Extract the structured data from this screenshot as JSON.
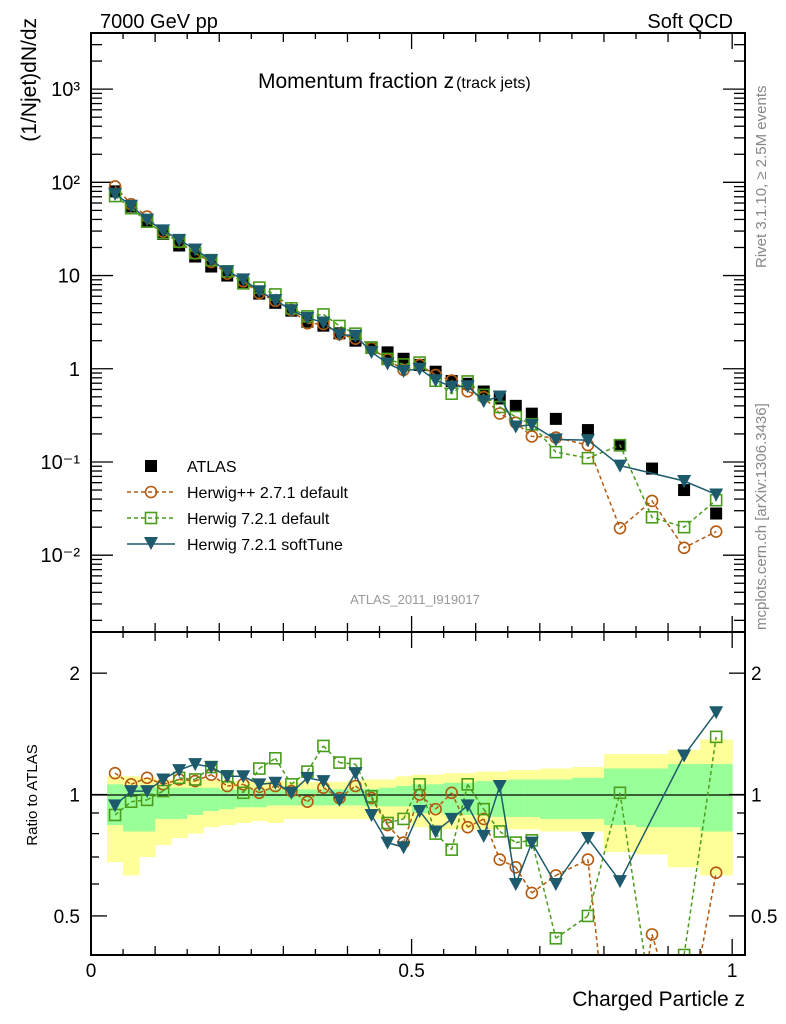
{
  "header": {
    "left": "7000 GeV pp",
    "right": "Soft QCD"
  },
  "side_text": {
    "rivet": "Rivet 3.1.10, ≥ 2.5M events",
    "mcplots": "mcplots.cern.ch [arXiv:1306.3436]"
  },
  "watermark": "ATLAS_2011_I919017",
  "chart_data": {
    "type": "line",
    "title": "Momentum fraction z",
    "title_sub": "(track jets)",
    "xlabel": "Charged Particle z",
    "ylabel": "(1/Njet)dN/dz",
    "ratio_ylabel": "Ratio to ATLAS",
    "xlim": [
      0,
      1.02
    ],
    "ylim": [
      0.0015,
      4000
    ],
    "yscale": "log",
    "ratio_ylim": [
      0.4,
      2.53
    ],
    "x_ticks": [
      {
        "v": 0,
        "label": "0"
      },
      {
        "v": 0.5,
        "label": "0.5"
      },
      {
        "v": 1,
        "label": "1"
      }
    ],
    "y_ticks": [
      {
        "v": 1000,
        "label": "10³"
      },
      {
        "v": 100,
        "label": "10²"
      },
      {
        "v": 10,
        "label": "10"
      },
      {
        "v": 1,
        "label": "1"
      },
      {
        "v": 0.1,
        "label": "10⁻¹"
      },
      {
        "v": 0.01,
        "label": "10⁻²"
      }
    ],
    "ratio_ticks": [
      {
        "v": 0.5,
        "label": "0.5"
      },
      {
        "v": 1,
        "label": "1"
      },
      {
        "v": 2,
        "label": "2"
      }
    ],
    "legend_position": "lower-left",
    "x": [
      0.0375,
      0.0625,
      0.0875,
      0.1125,
      0.1375,
      0.1625,
      0.1875,
      0.2125,
      0.2375,
      0.2625,
      0.2875,
      0.3125,
      0.3375,
      0.3625,
      0.3875,
      0.4125,
      0.4375,
      0.4625,
      0.4875,
      0.5125,
      0.5375,
      0.5625,
      0.5875,
      0.6125,
      0.6375,
      0.6625,
      0.6875,
      0.725,
      0.775,
      0.825,
      0.875,
      0.925,
      0.975
    ],
    "data": {
      "name": "ATLAS",
      "color": "#000000",
      "values": [
        80,
        55,
        39,
        28,
        21,
        16,
        12.5,
        10,
        8.2,
        6.4,
        5.1,
        4.2,
        3.2,
        2.9,
        2.4,
        2.0,
        1.7,
        1.5,
        1.28,
        1.1,
        0.93,
        0.74,
        0.69,
        0.57,
        0.48,
        0.4,
        0.33,
        0.29,
        0.22,
        0.15,
        0.085,
        0.05,
        0.028
      ],
      "band_total": {
        "lo": [
          0.68,
          0.63,
          0.7,
          0.75,
          0.78,
          0.8,
          0.83,
          0.84,
          0.85,
          0.86,
          0.85,
          0.87,
          0.87,
          0.87,
          0.87,
          0.87,
          0.87,
          0.87,
          0.87,
          0.83,
          0.82,
          0.82,
          0.82,
          0.82,
          0.82,
          0.82,
          0.82,
          0.81,
          0.81,
          0.72,
          0.71,
          0.66,
          0.63
        ],
        "hi": [
          1.11,
          1.11,
          1.1,
          1.09,
          1.09,
          1.09,
          1.09,
          1.08,
          1.08,
          1.08,
          1.08,
          1.075,
          1.075,
          1.075,
          1.075,
          1.085,
          1.09,
          1.09,
          1.11,
          1.12,
          1.12,
          1.13,
          1.13,
          1.14,
          1.14,
          1.15,
          1.15,
          1.16,
          1.17,
          1.26,
          1.26,
          1.29,
          1.37
        ]
      },
      "band_stat": {
        "lo": [
          0.84,
          0.81,
          0.81,
          0.87,
          0.87,
          0.89,
          0.91,
          0.92,
          0.93,
          0.93,
          0.94,
          0.94,
          0.94,
          0.94,
          0.94,
          0.94,
          0.935,
          0.935,
          0.935,
          0.9,
          0.9,
          0.89,
          0.89,
          0.89,
          0.88,
          0.88,
          0.88,
          0.87,
          0.87,
          0.84,
          0.83,
          0.83,
          0.81
        ],
        "hi": [
          1.06,
          1.05,
          1.05,
          1.04,
          1.04,
          1.04,
          1.04,
          1.03,
          1.03,
          1.03,
          1.03,
          1.03,
          1.03,
          1.03,
          1.03,
          1.033,
          1.033,
          1.04,
          1.05,
          1.06,
          1.06,
          1.07,
          1.07,
          1.08,
          1.08,
          1.09,
          1.09,
          1.09,
          1.1,
          1.16,
          1.16,
          1.19,
          1.19
        ]
      }
    },
    "series": [
      {
        "name": "Herwig++ 2.7.1 default",
        "color": "#b35a10",
        "marker": "circle",
        "dashed": true,
        "ratio_to_data": [
          1.13,
          1.06,
          1.1,
          1.06,
          1.09,
          1.08,
          1.12,
          1.05,
          1.06,
          1.01,
          1.05,
          1.02,
          0.96,
          1.04,
          0.98,
          1.05,
          0.98,
          0.84,
          0.76,
          1.0,
          0.92,
          1.01,
          0.83,
          0.87,
          0.69,
          0.66,
          0.57,
          0.63,
          0.69,
          0.13,
          0.45,
          0.24,
          0.64
        ]
      },
      {
        "name": "Herwig 7.2.1 default",
        "color": "#4a9c1c",
        "marker": "square",
        "dashed": true,
        "ratio_to_data": [
          0.89,
          0.96,
          0.97,
          1.02,
          1.1,
          1.09,
          1.17,
          1.11,
          1.01,
          1.16,
          1.23,
          1.06,
          1.14,
          1.32,
          1.2,
          1.19,
          0.99,
          0.85,
          0.87,
          1.06,
          0.8,
          0.73,
          1.06,
          0.92,
          0.81,
          0.76,
          0.77,
          0.44,
          0.5,
          1.01,
          0.3,
          0.4,
          1.39
        ]
      },
      {
        "name": "Herwig 7.2.1 softTune",
        "color": "#1d5b6c",
        "marker": "triangle-down",
        "dashed": false,
        "ratio_to_data": [
          0.94,
          1.02,
          1.02,
          1.09,
          1.15,
          1.19,
          1.17,
          1.11,
          1.11,
          1.06,
          1.07,
          1.01,
          1.1,
          1.08,
          0.97,
          1.13,
          0.89,
          0.76,
          0.74,
          0.91,
          0.81,
          0.87,
          0.94,
          0.79,
          1.05,
          0.6,
          0.76,
          0.6,
          0.78,
          0.61,
          null,
          1.25,
          1.6
        ]
      }
    ]
  }
}
